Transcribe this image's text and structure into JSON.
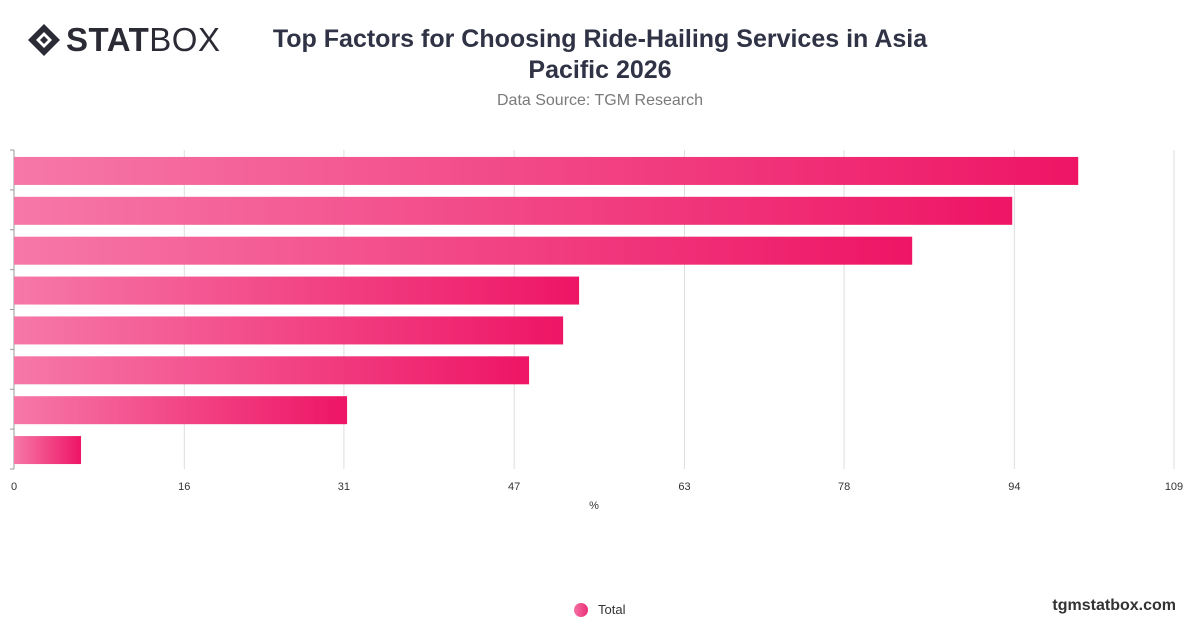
{
  "logo": {
    "stat": "STAT",
    "box": "BOX"
  },
  "header": {
    "title": "Top Factors for Choosing Ride-Hailing Services in Asia Pacific 2026",
    "subtitle": "Data Source: TGM Research"
  },
  "footer": {
    "brand": "tgmstatbox.com"
  },
  "colors": {
    "bar_start": "#f678a8",
    "bar_end": "#ee1565",
    "grid": "#dddddd",
    "axis_text": "#333333"
  },
  "chart_data": {
    "type": "bar",
    "orientation": "horizontal",
    "categories": [
      "",
      "",
      "",
      "",
      "",
      "",
      "",
      ""
    ],
    "series": [
      {
        "name": "Total",
        "values": [
          100,
          93.8,
          84.4,
          53.1,
          51.6,
          48.4,
          31.3,
          6.3
        ]
      }
    ],
    "xlabel": "%",
    "xlim": [
      0,
      109
    ],
    "xticks": [
      0,
      16,
      31,
      47,
      63,
      78,
      94,
      109
    ],
    "grid": true,
    "legend": "bottom-center"
  }
}
